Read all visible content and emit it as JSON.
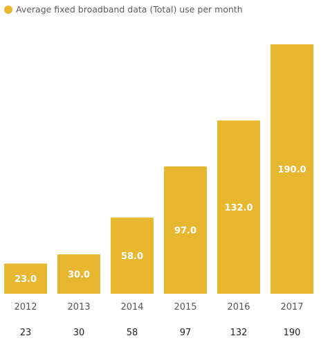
{
  "legend": {
    "label": "Average fixed broadband data (Total) use per month",
    "color": "#E8B730"
  },
  "chart_data": {
    "type": "bar",
    "categories": [
      "2012",
      "2013",
      "2014",
      "2015",
      "2016",
      "2017"
    ],
    "series": [
      {
        "name": "Average fixed broadband data (Total) use per month",
        "values": [
          23,
          30,
          58,
          97,
          132,
          190
        ],
        "data_labels": [
          "23.0",
          "30.0",
          "58.0",
          "97.0",
          "132.0",
          "190.0"
        ],
        "table_values": [
          "23",
          "30",
          "58",
          "97",
          "132",
          "190"
        ]
      }
    ],
    "ylim": [
      0,
      190
    ],
    "grid": false,
    "legend_position": "top-left",
    "bar_color": "#E8B730"
  }
}
